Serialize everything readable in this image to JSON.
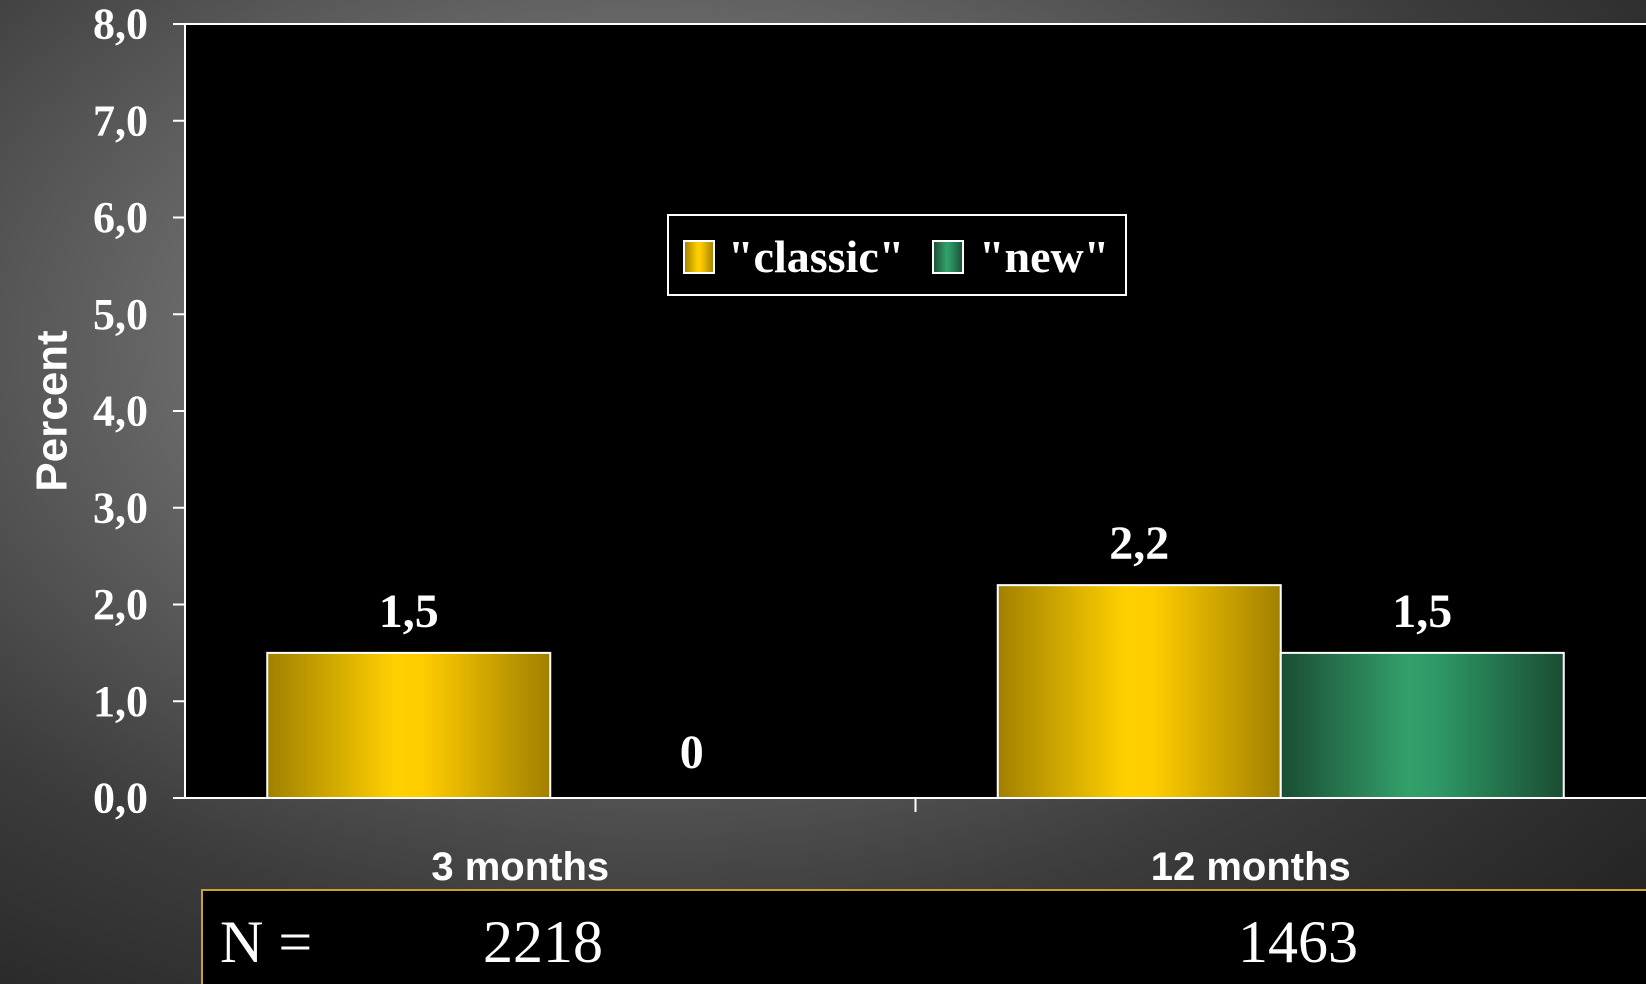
{
  "chart_data": {
    "type": "bar",
    "ylabel": "Percent",
    "ylim": [
      0,
      8
    ],
    "yticks": [
      "0,0",
      "1,0",
      "2,0",
      "3,0",
      "4,0",
      "5,0",
      "6,0",
      "7,0",
      "8,0"
    ],
    "categories": [
      "3 months",
      "12 months"
    ],
    "series": [
      {
        "name": "\"classic\"",
        "values": [
          1.5,
          2.2
        ],
        "labels": [
          "1,5",
          "2,2"
        ],
        "color": "#ffcc00"
      },
      {
        "name": "\"new\"",
        "values": [
          0,
          1.5
        ],
        "labels": [
          "0",
          "1,5"
        ],
        "color": "#2e9966"
      }
    ],
    "legend_position": "top-center",
    "grid": false
  },
  "n_row": {
    "label": "N =",
    "values": [
      "2218",
      "1463"
    ],
    "border_color": "#c9a227"
  }
}
